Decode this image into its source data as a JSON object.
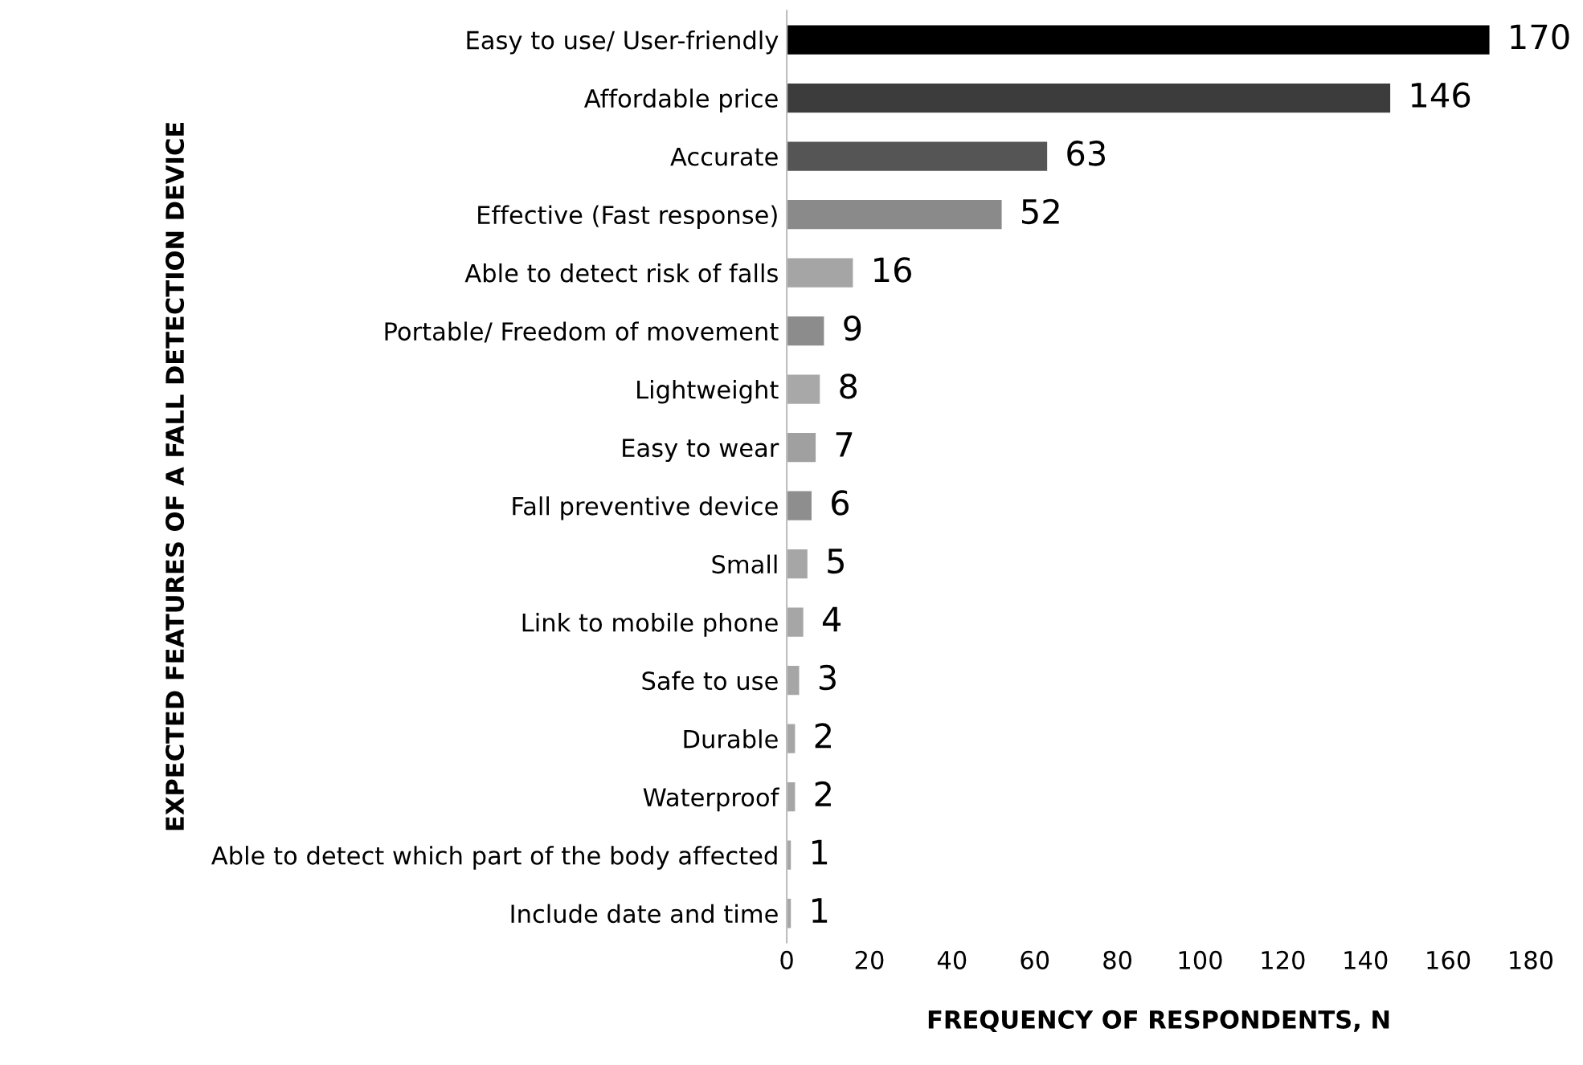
{
  "chart_data": {
    "type": "bar",
    "orientation": "horizontal",
    "categories": [
      "Easy to use/ User-friendly",
      "Affordable price",
      "Accurate",
      "Effective (Fast response)",
      "Able to detect risk of falls",
      "Portable/ Freedom of movement",
      "Lightweight",
      "Easy to wear",
      "Fall preventive device",
      "Small",
      "Link to mobile phone",
      "Safe to use",
      "Durable",
      "Waterproof",
      "Able to detect which part of the body affected",
      "Include date and time"
    ],
    "values": [
      170,
      146,
      63,
      52,
      16,
      9,
      8,
      7,
      6,
      5,
      4,
      3,
      2,
      2,
      1,
      1
    ],
    "colors": [
      "#000000",
      "#3c3c3c",
      "#555555",
      "#8a8a8a",
      "#a5a5a5",
      "#8c8c8c",
      "#a8a8a8",
      "#a0a0a0",
      "#8e8e8e",
      "#a6a6a6",
      "#a6a6a6",
      "#a6a6a6",
      "#a6a6a6",
      "#a6a6a6",
      "#a6a6a6",
      "#a6a6a6"
    ],
    "xlim": [
      0,
      180
    ],
    "xticks": [
      0,
      20,
      40,
      60,
      80,
      100,
      120,
      140,
      160,
      180
    ],
    "xlabel": "FREQUENCY OF RESPONDENTS, N",
    "ylabel": "EXPECTED FEATURES OF A FALL DETECTION DEVICE",
    "data_labels": true,
    "grid": false,
    "legend": false
  }
}
